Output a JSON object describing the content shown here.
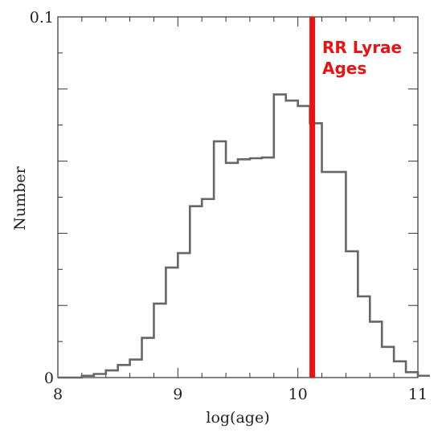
{
  "chart_data": {
    "type": "histogram",
    "title": "",
    "xlabel": "log(age)",
    "ylabel": "Number",
    "xlim": [
      8,
      11
    ],
    "ylim": [
      0,
      0.1
    ],
    "x_ticks": [
      8,
      9,
      10,
      11
    ],
    "x_tick_labels": [
      "8",
      "9",
      "10",
      "11"
    ],
    "y_tick_labels": [
      {
        "value": 0,
        "label": "0"
      },
      {
        "value": 0.1,
        "label": "0.1"
      }
    ],
    "bin_width": 0.1,
    "bin_edges_start": 8.0,
    "values": [
      0,
      0,
      0.0005,
      0.001,
      0.002,
      0.0035,
      0.005,
      0.011,
      0.0205,
      0.0305,
      0.0345,
      0.0475,
      0.0495,
      0.0655,
      0.0595,
      0.0605,
      0.0608,
      0.061,
      0.0785,
      0.0768,
      0.0753,
      0.0705,
      0.057,
      0.057,
      0.035,
      0.0225,
      0.0155,
      0.0085,
      0.0045,
      0.0015,
      0.0005
    ],
    "histogram_color": "#666666",
    "marker": {
      "x": 10.12,
      "color": "#ee1111",
      "label_lines": [
        "RR Lyrae",
        "Ages"
      ]
    }
  }
}
